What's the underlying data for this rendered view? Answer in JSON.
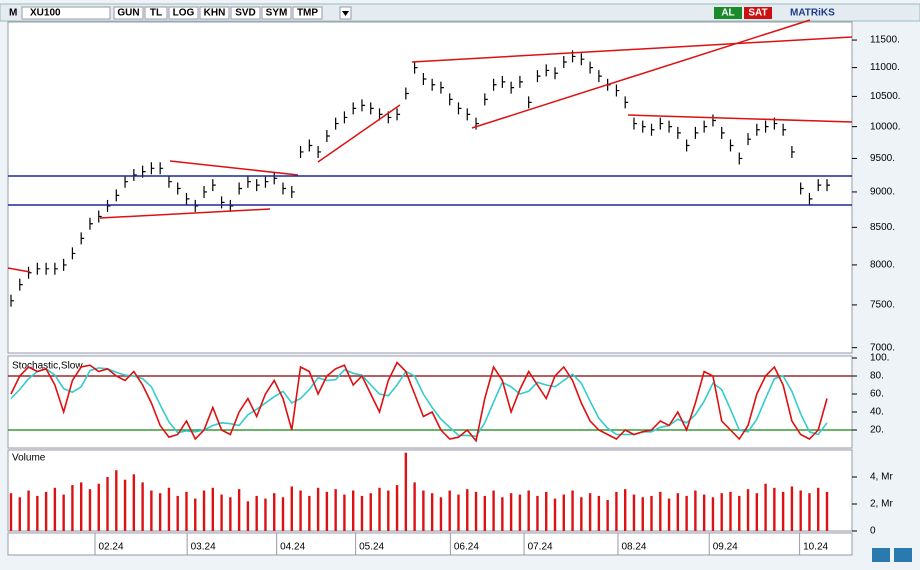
{
  "toolbar": {
    "logo": "M",
    "symbol": "XU100",
    "buttons": [
      "GUN",
      "TL",
      "LOG",
      "KHN",
      "SVD",
      "SYM",
      "TMP"
    ],
    "buy": "AL",
    "sell": "SAT",
    "brand": "MATRiKS"
  },
  "chart_data": [
    {
      "type": "ohlc",
      "log": true,
      "color": "#000000",
      "ylim": [
        6940,
        11840
      ],
      "yticks": [
        {
          "value": 11500,
          "label": "11500."
        },
        {
          "value": 11000,
          "label": "11000."
        },
        {
          "value": 10500,
          "label": "10500."
        },
        {
          "value": 10000,
          "label": "10000."
        },
        {
          "value": 9500,
          "label": "9500."
        },
        {
          "value": 9000,
          "label": "9000."
        },
        {
          "value": 8500,
          "label": "8500."
        },
        {
          "value": 8000,
          "label": "8000."
        },
        {
          "value": 7500,
          "label": "7500."
        },
        {
          "value": 7000,
          "label": "7000."
        }
      ],
      "values": [
        7550,
        7750,
        7900,
        7950,
        7950,
        7950,
        8000,
        8150,
        8350,
        8550,
        8650,
        8800,
        8950,
        9150,
        9250,
        9300,
        9350,
        9350,
        9150,
        9050,
        8900,
        8800,
        9000,
        9100,
        8850,
        8800,
        9050,
        9150,
        9100,
        9150,
        9200,
        9050,
        9000,
        9600,
        9700,
        9600,
        9850,
        10050,
        10150,
        10300,
        10350,
        10300,
        10200,
        10150,
        10200,
        10550,
        11000,
        10800,
        10700,
        10650,
        10450,
        10300,
        10200,
        10050,
        10450,
        10700,
        10750,
        10650,
        10750,
        10400,
        10850,
        10950,
        10900,
        11100,
        11200,
        11150,
        11000,
        10850,
        10700,
        10600,
        10400,
        10050,
        10000,
        9950,
        10050,
        10000,
        9900,
        9700,
        9900,
        10000,
        10100,
        9900,
        9700,
        9500,
        9800,
        9950,
        10000,
        10050,
        9950,
        9600,
        9050,
        8900,
        9100,
        9100
      ]
    },
    {
      "type": "line",
      "title": "Stochastic,Slow",
      "ylim": [
        0,
        100
      ],
      "yticks": [
        {
          "value": 100,
          "label": "100."
        },
        {
          "value": 80,
          "label": "80."
        },
        {
          "value": 60,
          "label": "60."
        },
        {
          "value": 40,
          "label": "40."
        },
        {
          "value": 20,
          "label": "20."
        }
      ],
      "series": [
        {
          "color": "#dd1111",
          "values": [
            60,
            80,
            90,
            85,
            88,
            70,
            40,
            75,
            90,
            92,
            85,
            88,
            80,
            75,
            85,
            70,
            50,
            25,
            12,
            15,
            30,
            10,
            20,
            45,
            20,
            15,
            40,
            55,
            35,
            60,
            75,
            55,
            20,
            90,
            85,
            60,
            80,
            88,
            92,
            70,
            80,
            60,
            40,
            75,
            95,
            85,
            60,
            35,
            40,
            20,
            10,
            12,
            20,
            8,
            55,
            90,
            75,
            40,
            65,
            85,
            70,
            55,
            80,
            90,
            75,
            50,
            30,
            20,
            15,
            10,
            20,
            15,
            18,
            20,
            30,
            25,
            40,
            20,
            50,
            85,
            80,
            30,
            20,
            10,
            25,
            60,
            80,
            90,
            70,
            30,
            15,
            10,
            20,
            55
          ]
        },
        {
          "color": "#33cccc",
          "values": [
            55,
            65,
            77,
            85,
            88,
            81,
            66,
            62,
            68,
            86,
            89,
            88,
            84,
            81,
            80,
            77,
            68,
            48,
            29,
            17,
            19,
            18,
            20,
            25,
            28,
            27,
            25,
            37,
            43,
            50,
            57,
            63,
            50,
            55,
            65,
            78,
            75,
            76,
            87,
            83,
            81,
            70,
            60,
            58,
            70,
            85,
            80,
            60,
            45,
            32,
            23,
            14,
            14,
            13,
            28,
            51,
            73,
            68,
            60,
            63,
            73,
            70,
            68,
            75,
            82,
            72,
            52,
            33,
            22,
            15,
            15,
            15,
            18,
            18,
            23,
            25,
            32,
            28,
            37,
            52,
            72,
            65,
            43,
            20,
            18,
            32,
            55,
            77,
            80,
            63,
            38,
            18,
            15,
            28
          ]
        }
      ]
    },
    {
      "type": "bar",
      "title": "Volume",
      "color": "#dd1111",
      "ylim": [
        0,
        6
      ],
      "yticks": [
        0,
        {
          "value": 2,
          "label": "2, Mr"
        },
        {
          "value": 4,
          "label": "4, Mr"
        }
      ],
      "xlim": [
        0,
        93
      ],
      "xticks": [
        {
          "value": 11.4,
          "label": "02.24"
        },
        {
          "value": 21.9,
          "label": "03.24"
        },
        {
          "value": 32.1,
          "label": "04.24"
        },
        {
          "value": 41.1,
          "label": "05.24"
        },
        {
          "value": 51.9,
          "label": "06.24"
        },
        {
          "value": 60.3,
          "label": "07.24"
        },
        {
          "value": 71.0,
          "label": "08.24"
        },
        {
          "value": 81.4,
          "label": "09.24"
        },
        {
          "value": 91.7,
          "label": "10.24"
        }
      ],
      "values": [
        2.8,
        2.5,
        3.0,
        2.6,
        2.9,
        3.2,
        2.7,
        3.4,
        3.6,
        3.1,
        3.5,
        4.0,
        4.5,
        3.8,
        4.2,
        3.6,
        3.0,
        2.8,
        3.2,
        2.6,
        2.9,
        2.4,
        3.0,
        3.2,
        2.7,
        2.5,
        3.1,
        2.2,
        2.6,
        2.4,
        2.8,
        2.5,
        3.3,
        3.0,
        2.6,
        3.2,
        2.9,
        3.1,
        2.7,
        3.0,
        2.6,
        2.8,
        3.2,
        3.0,
        3.4,
        5.8,
        3.6,
        3.0,
        2.8,
        2.5,
        3.0,
        2.7,
        3.1,
        2.9,
        2.6,
        3.0,
        2.5,
        2.8,
        2.7,
        3.0,
        2.6,
        2.9,
        2.4,
        2.7,
        3.0,
        2.5,
        2.8,
        2.6,
        2.3,
        2.9,
        3.1,
        2.7,
        2.5,
        2.6,
        2.9,
        2.4,
        2.8,
        2.6,
        3.0,
        2.7,
        2.5,
        2.8,
        2.9,
        2.6,
        3.1,
        2.8,
        3.5,
        3.2,
        2.9,
        3.3,
        3.0,
        2.8,
        3.2,
        2.9
      ]
    }
  ]
}
